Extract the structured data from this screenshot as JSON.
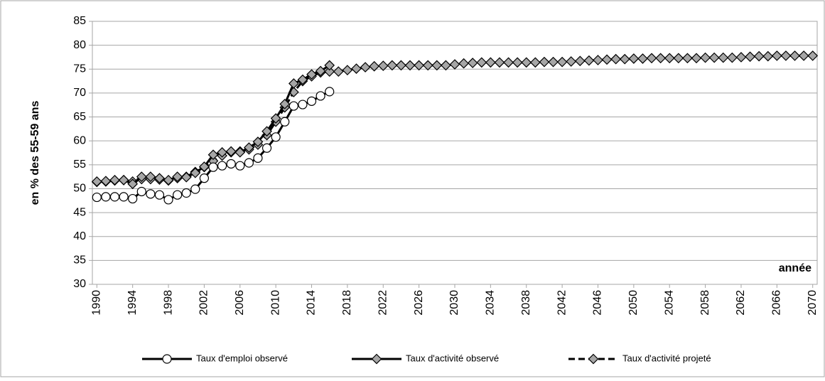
{
  "chart_data": {
    "type": "line",
    "y_label": "en % des 55-59 ans",
    "x_label": "année",
    "x": [
      1990,
      1991,
      1992,
      1993,
      1994,
      1995,
      1996,
      1997,
      1998,
      1999,
      2000,
      2001,
      2002,
      2003,
      2004,
      2005,
      2006,
      2007,
      2008,
      2009,
      2010,
      2011,
      2012,
      2013,
      2014,
      2015,
      2016,
      2017,
      2018,
      2019,
      2020,
      2021,
      2022,
      2023,
      2024,
      2025,
      2026,
      2027,
      2028,
      2029,
      2030,
      2031,
      2032,
      2033,
      2034,
      2035,
      2036,
      2037,
      2038,
      2039,
      2040,
      2041,
      2042,
      2043,
      2044,
      2045,
      2046,
      2047,
      2048,
      2049,
      2050,
      2051,
      2052,
      2053,
      2054,
      2055,
      2056,
      2057,
      2058,
      2059,
      2060,
      2061,
      2062,
      2063,
      2064,
      2065,
      2066,
      2067,
      2068,
      2069,
      2070
    ],
    "series": [
      {
        "name": "Taux d'activité projeté",
        "color": "#000000",
        "marker": "diamond",
        "marker_fill": "#a6a6a6",
        "dash": true,
        "values": [
          51.4,
          51.5,
          51.7,
          51.8,
          51.5,
          52.0,
          52.0,
          51.9,
          51.7,
          52.2,
          52.5,
          53.5,
          54.5,
          55.8,
          56.9,
          57.6,
          57.8,
          58.2,
          59.2,
          61.2,
          64.0,
          67.0,
          70.2,
          72.5,
          73.5,
          74.3,
          74.5,
          74.5,
          74.8,
          75.1,
          75.4,
          75.6,
          75.7,
          75.8,
          75.8,
          75.8,
          75.8,
          75.8,
          75.8,
          75.8,
          76.0,
          76.2,
          76.3,
          76.4,
          76.4,
          76.4,
          76.4,
          76.4,
          76.4,
          76.4,
          76.5,
          76.5,
          76.5,
          76.6,
          76.7,
          76.8,
          76.9,
          77.0,
          77.1,
          77.1,
          77.2,
          77.2,
          77.3,
          77.3,
          77.3,
          77.3,
          77.3,
          77.3,
          77.4,
          77.4,
          77.4,
          77.4,
          77.5,
          77.6,
          77.7,
          77.7,
          77.8,
          77.8,
          77.8,
          77.8,
          77.8
        ]
      },
      {
        "name": "Taux d'activité observé",
        "color": "#000000",
        "marker": "diamond",
        "marker_fill": "#a6a6a6",
        "dash": false,
        "values": [
          51.5,
          51.6,
          51.8,
          51.8,
          51.0,
          52.5,
          52.5,
          52.2,
          51.8,
          52.5,
          52.4,
          53.3,
          54.6,
          57.1,
          57.6,
          57.8,
          57.6,
          58.6,
          59.8,
          62.0,
          64.7,
          67.7,
          72.0,
          72.8,
          73.9,
          74.6,
          75.8,
          null,
          null,
          null,
          null,
          null,
          null,
          null,
          null,
          null,
          null,
          null,
          null,
          null,
          null,
          null,
          null,
          null,
          null,
          null,
          null,
          null,
          null,
          null,
          null,
          null,
          null,
          null,
          null,
          null,
          null,
          null,
          null,
          null,
          null,
          null,
          null,
          null,
          null,
          null,
          null,
          null,
          null,
          null,
          null,
          null,
          null,
          null,
          null,
          null,
          null,
          null,
          null,
          null,
          null
        ]
      },
      {
        "name": "Taux d'emploi observé",
        "color": "#000000",
        "marker": "circle",
        "marker_fill": "#ffffff",
        "dash": false,
        "values": [
          48.2,
          48.3,
          48.3,
          48.3,
          47.9,
          49.4,
          48.9,
          48.7,
          47.7,
          48.7,
          49.1,
          49.9,
          52.2,
          54.5,
          54.8,
          55.2,
          54.8,
          55.4,
          56.4,
          58.5,
          60.8,
          64.0,
          67.3,
          67.6,
          68.3,
          69.4,
          70.3,
          null,
          null,
          null,
          null,
          null,
          null,
          null,
          null,
          null,
          null,
          null,
          null,
          null,
          null,
          null,
          null,
          null,
          null,
          null,
          null,
          null,
          null,
          null,
          null,
          null,
          null,
          null,
          null,
          null,
          null,
          null,
          null,
          null,
          null,
          null,
          null,
          null,
          null,
          null,
          null,
          null,
          null,
          null,
          null,
          null,
          null,
          null,
          null,
          null,
          null,
          null,
          null,
          null,
          null
        ]
      }
    ],
    "legend_order": [
      2,
      1,
      0
    ],
    "xlim": [
      1989.5,
      2070.5
    ],
    "xticks": [
      1990,
      1994,
      1998,
      2002,
      2006,
      2010,
      2014,
      2018,
      2022,
      2026,
      2030,
      2034,
      2038,
      2042,
      2046,
      2050,
      2054,
      2058,
      2062,
      2066,
      2070
    ],
    "ylim": [
      30,
      85
    ],
    "yticks": [
      30,
      35,
      40,
      45,
      50,
      55,
      60,
      65,
      70,
      75,
      80,
      85
    ],
    "grid": true
  }
}
